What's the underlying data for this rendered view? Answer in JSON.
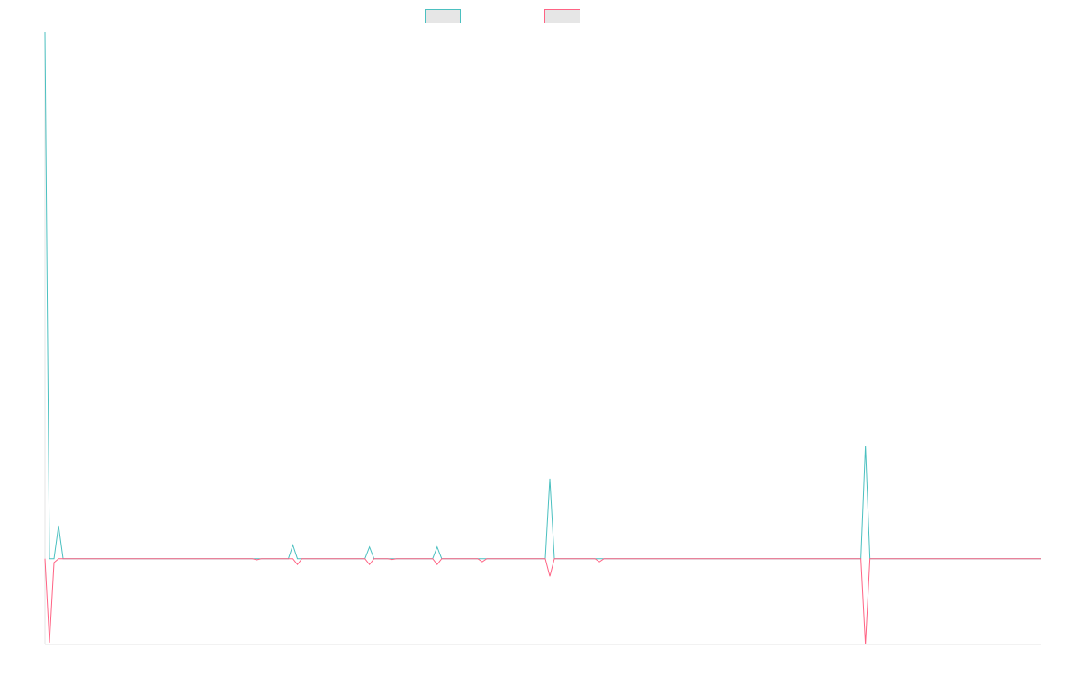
{
  "chart_data": {
    "type": "line",
    "title": "",
    "xlabel": "",
    "ylabel": "",
    "x_range": [
      0,
      221
    ],
    "ylim": [
      -22,
      135
    ],
    "grid": false,
    "legend": "top-center",
    "series": [
      {
        "color": "#4bc0c0",
        "fill": "#e6e6e6",
        "points": [
          [
            0,
            135
          ],
          [
            1,
            0
          ],
          [
            2,
            0
          ],
          [
            3,
            8.5
          ],
          [
            4,
            0
          ],
          [
            54,
            0
          ],
          [
            55,
            3.5
          ],
          [
            56,
            0
          ],
          [
            71,
            0
          ],
          [
            72,
            3
          ],
          [
            73,
            0
          ],
          [
            86,
            0
          ],
          [
            87,
            3
          ],
          [
            88,
            0
          ],
          [
            111,
            0
          ],
          [
            112,
            20.5
          ],
          [
            113,
            0
          ],
          [
            181,
            0
          ],
          [
            182,
            29
          ],
          [
            183,
            0
          ],
          [
            221,
            0
          ]
        ]
      },
      {
        "color": "#ff6384",
        "fill": "#e6e6e6",
        "points": [
          [
            0,
            0
          ],
          [
            1,
            -21.5
          ],
          [
            2,
            -1
          ],
          [
            3,
            0
          ],
          [
            46,
            0
          ],
          [
            47,
            -0.3
          ],
          [
            48,
            0
          ],
          [
            55,
            0
          ],
          [
            56,
            -1.5
          ],
          [
            57,
            0
          ],
          [
            71,
            0
          ],
          [
            72,
            -1.5
          ],
          [
            73,
            0
          ],
          [
            76,
            0
          ],
          [
            77,
            -0.2
          ],
          [
            78,
            0
          ],
          [
            86,
            0
          ],
          [
            87,
            -1.5
          ],
          [
            88,
            0
          ],
          [
            96,
            0
          ],
          [
            97,
            -0.8
          ],
          [
            98,
            0
          ],
          [
            111,
            0
          ],
          [
            112,
            -4.5
          ],
          [
            113,
            0
          ],
          [
            122,
            0
          ],
          [
            123,
            -0.8
          ],
          [
            124,
            0
          ],
          [
            181,
            0
          ],
          [
            182,
            -22
          ],
          [
            183,
            0
          ],
          [
            221,
            0
          ]
        ]
      }
    ]
  }
}
